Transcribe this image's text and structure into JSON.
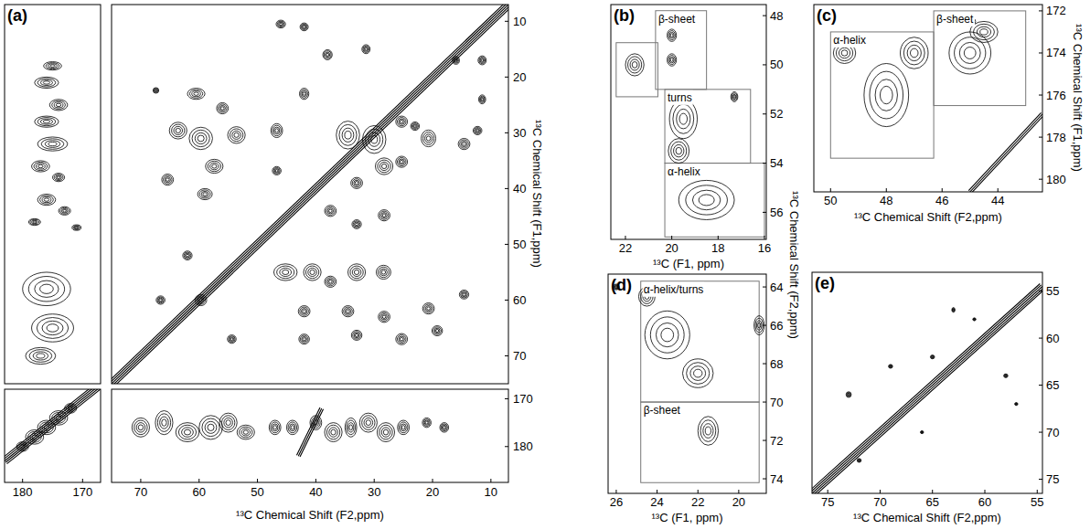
{
  "chart_data": [
    {
      "type": "contour",
      "panel": "(a)",
      "ylabel": "¹³C Chemical Shift (F1,ppm)",
      "xlim": [
        75,
        7
      ],
      "ylim": [
        7,
        75
      ],
      "yticks": [
        10,
        20,
        30,
        40,
        50,
        60,
        70
      ],
      "tick_labels": "y",
      "diagonal": {
        "x": [
          75,
          7
        ],
        "y": [
          75,
          7
        ]
      },
      "peaks": {
        "x": [
          46,
          42,
          38,
          31.4,
          16,
          11.5,
          11.5,
          42,
          60.5,
          56,
          67.4,
          63.6,
          59.7,
          53.6,
          57.4,
          65.4,
          59,
          46.7,
          46.7,
          34.5,
          30,
          25.3,
          28.3,
          25.3,
          33,
          20.7,
          23,
          14.6,
          12.3,
          37.5,
          33,
          28.3,
          45.2,
          40.6,
          37.5,
          33,
          28.4,
          62,
          59.7,
          66.6,
          42,
          34.5,
          28.3,
          20.7,
          14.6,
          42,
          33,
          25.3,
          19.2,
          54.4
        ],
        "y": [
          10.5,
          11,
          16,
          15,
          17,
          17,
          24,
          23,
          23,
          25.6,
          22.4,
          29.6,
          31,
          30.4,
          36,
          38.4,
          41,
          29.6,
          36.8,
          30.4,
          31.2,
          28,
          36,
          35.2,
          39,
          31,
          28.8,
          32,
          29.6,
          44,
          46.4,
          44.8,
          55,
          55,
          56.7,
          55,
          55,
          52,
          60,
          60,
          62,
          62,
          63,
          61.5,
          59,
          67,
          66.3,
          67,
          65.5,
          67
        ],
        "width": [
          1.6,
          1.4,
          1.6,
          1.4,
          1.2,
          1.4,
          1.2,
          1.6,
          3,
          2,
          1,
          3,
          4,
          3,
          3,
          2,
          2.5,
          2,
          1.5,
          4,
          4,
          2,
          3,
          2,
          2,
          2.5,
          1.5,
          2,
          1.5,
          2,
          1.6,
          2,
          4,
          3,
          2,
          3,
          2.5,
          1.6,
          2,
          1.5,
          2,
          2,
          2,
          2,
          1.6,
          1.8,
          1.8,
          2,
          1.8,
          1.5
        ],
        "height": [
          1.4,
          1.4,
          1.8,
          1.6,
          1.4,
          1.6,
          1.6,
          2,
          2,
          2,
          1,
          3,
          4,
          3,
          2.5,
          2,
          2,
          2.5,
          1.5,
          5,
          5,
          2,
          3,
          2,
          2,
          3,
          1.5,
          2,
          1.5,
          2,
          1.6,
          2,
          3,
          3,
          2,
          3,
          2.5,
          1.6,
          2,
          1.5,
          2,
          2,
          2,
          2,
          1.6,
          1.8,
          1.8,
          2,
          1.8,
          1.5
        ]
      }
    },
    {
      "type": "contour",
      "xlim": [
        183,
        167
      ],
      "ylim": [
        7,
        75
      ],
      "tick_labels": false,
      "peaks": {
        "x": [
          175,
          176,
          174,
          176,
          175,
          177,
          174,
          176,
          173,
          178,
          171,
          176,
          175,
          177
        ],
        "y": [
          18,
          21,
          25,
          28,
          32,
          36,
          38,
          42,
          44,
          46,
          47,
          58,
          65,
          70
        ],
        "width": [
          3,
          4,
          3,
          4,
          5,
          3,
          2,
          3,
          2,
          2,
          1.5,
          8,
          7,
          5
        ],
        "height": [
          1.5,
          2,
          2,
          2,
          2.5,
          2,
          1.5,
          2,
          1.5,
          1.2,
          1,
          6,
          5,
          3
        ]
      }
    },
    {
      "type": "contour",
      "xlabel": "¹³C Chemical Shift (F2,ppm)",
      "xlim": [
        75,
        7
      ],
      "ylim": [
        168,
        187.5
      ],
      "xticks": [
        70,
        60,
        50,
        40,
        30,
        20,
        10
      ],
      "yticks": [
        170,
        180
      ],
      "ridge": {
        "x": [
          43,
          39
        ],
        "y": [
          182,
          172
        ]
      },
      "peaks": {
        "x": [
          70,
          66,
          62,
          58,
          55,
          52,
          47,
          44,
          40,
          37,
          34,
          31,
          28,
          25,
          21,
          18
        ],
        "y": [
          176,
          175,
          177,
          176,
          175,
          177,
          176,
          176,
          175,
          177,
          176,
          175,
          177,
          176,
          175,
          176
        ],
        "width": [
          3,
          3,
          4,
          4,
          3,
          3,
          2,
          2,
          2,
          3,
          2,
          3,
          3,
          2,
          1.5,
          1.5
        ],
        "height": [
          4,
          5,
          4,
          5,
          4,
          3,
          3,
          3,
          3,
          4,
          4,
          4,
          4,
          3,
          2,
          2
        ]
      }
    },
    {
      "type": "contour",
      "xlim": [
        183,
        167
      ],
      "ylim": [
        168,
        187.5
      ],
      "xticks": [
        180,
        170
      ],
      "tick_labels": "x",
      "diagonal": {
        "x": [
          183,
          167
        ],
        "y": [
          183,
          167
        ]
      },
      "peaks": {
        "x": [
          172,
          174,
          176,
          178,
          180
        ],
        "y": [
          172,
          174,
          176,
          178,
          180
        ],
        "width": [
          2,
          3,
          3,
          3,
          2
        ],
        "height": [
          2,
          3,
          3,
          3,
          2
        ]
      }
    },
    {
      "type": "contour",
      "panel": "(b)",
      "xlabel": "¹³C (F1, ppm)",
      "ylabel": "¹³C Chemical Shift (F2,ppm)",
      "xlim": [
        22.63,
        15.92
      ],
      "ylim": [
        47.55,
        57.1
      ],
      "xticks": [
        22,
        20,
        18,
        16
      ],
      "yticks": [
        48,
        50,
        52,
        54,
        56
      ],
      "regions": [
        {
          "x": [
            22.4,
            20.6
          ],
          "y": [
            49.1,
            51.3
          ]
        },
        {
          "label": "β-sheet",
          "x": [
            20.7,
            18.5
          ],
          "y": [
            47.8,
            51.0
          ]
        },
        {
          "label": "turns",
          "x": [
            20.3,
            16.6
          ],
          "y": [
            51.0,
            54.0
          ]
        },
        {
          "label": "α-helix",
          "x": [
            20.3,
            16.0
          ],
          "y": [
            54.0,
            57.0
          ]
        }
      ],
      "peaks": {
        "x": [
          21.6,
          20.0,
          20.0,
          19.5,
          18.5,
          17.3,
          19.7
        ],
        "y": [
          50.0,
          48.8,
          49.8,
          52.2,
          55.5,
          51.3,
          53.5
        ],
        "width": [
          0.8,
          0.4,
          0.4,
          1.2,
          2.4,
          0.3,
          0.9
        ],
        "height": [
          0.9,
          0.5,
          0.5,
          1.6,
          1.6,
          0.4,
          1
        ]
      }
    },
    {
      "type": "contour",
      "panel": "(c)",
      "xlabel": "¹³C Chemical Shift (F2,ppm)",
      "ylabel": "¹³C Chemical Shift (F1,ppm)",
      "xlim": [
        50.6,
        42.4
      ],
      "ylim": [
        171.7,
        180.6
      ],
      "xticks": [
        50,
        48,
        46,
        44
      ],
      "yticks": [
        172,
        174,
        176,
        178,
        180
      ],
      "ridge": {
        "x": [
          45,
          42.4
        ],
        "y": [
          180.6,
          176.9
        ]
      },
      "regions": [
        {
          "label": "α-helix",
          "x": [
            50.0,
            46.3
          ],
          "y": [
            173.0,
            179.0
          ]
        },
        {
          "label": "β-sheet",
          "x": [
            46.3,
            43.0
          ],
          "y": [
            172.0,
            176.5
          ]
        }
      ],
      "peaks": {
        "x": [
          48,
          47,
          45,
          44.5,
          49.5,
          45
        ],
        "y": [
          176,
          174,
          174,
          173,
          174,
          172.5
        ],
        "width": [
          1.6,
          1,
          1.5,
          1,
          0.8,
          0.4
        ],
        "height": [
          3,
          1.5,
          2,
          1,
          1,
          0.4
        ]
      }
    },
    {
      "type": "contour",
      "panel": "(d)",
      "xlabel": "¹³C (F1, ppm)",
      "xlim": [
        26.4,
        18.65
      ],
      "ylim": [
        63.33,
        74.76
      ],
      "xticks": [
        26,
        24,
        22,
        20
      ],
      "yticks": [
        64,
        66,
        68,
        70,
        72,
        74
      ],
      "regions": [
        {
          "label": "α-helix/turns",
          "x": [
            24.8,
            19.0
          ],
          "y": [
            63.7,
            70.0
          ]
        },
        {
          "label": "β-sheet",
          "x": [
            24.8,
            19.0
          ],
          "y": [
            70.0,
            74.2
          ]
        }
      ],
      "peaks": {
        "x": [
          23.5,
          22,
          21.5,
          24.5,
          19,
          26
        ],
        "y": [
          66.5,
          68.5,
          71.5,
          64.5,
          66,
          64
        ],
        "width": [
          2.2,
          1.5,
          1,
          0.8,
          0.5,
          0.3
        ],
        "height": [
          2.5,
          1.5,
          1.5,
          1,
          1,
          0.3
        ]
      }
    },
    {
      "type": "contour",
      "panel": "(e)",
      "xlabel": "¹³C Chemical Shift (F2,ppm)",
      "xlim": [
        76.5,
        54.5
      ],
      "ylim": [
        53,
        76.5
      ],
      "xticks": [
        75,
        70,
        65,
        60,
        55
      ],
      "yticks": [
        55,
        60,
        65,
        70,
        75
      ],
      "diagonal": {
        "x": [
          76.5,
          54.5
        ],
        "y": [
          76.5,
          54.5
        ]
      },
      "peaks": {
        "x": [
          73,
          72,
          69,
          63,
          65,
          58,
          57,
          66,
          61
        ],
        "y": [
          66,
          73,
          63,
          57,
          62,
          64,
          67,
          70,
          58
        ],
        "width": [
          0.5,
          0.4,
          0.4,
          0.3,
          0.4,
          0.4,
          0.3,
          0.3,
          0.3
        ],
        "height": [
          0.6,
          0.4,
          0.4,
          0.5,
          0.4,
          0.4,
          0.3,
          0.3,
          0.3
        ]
      }
    }
  ]
}
